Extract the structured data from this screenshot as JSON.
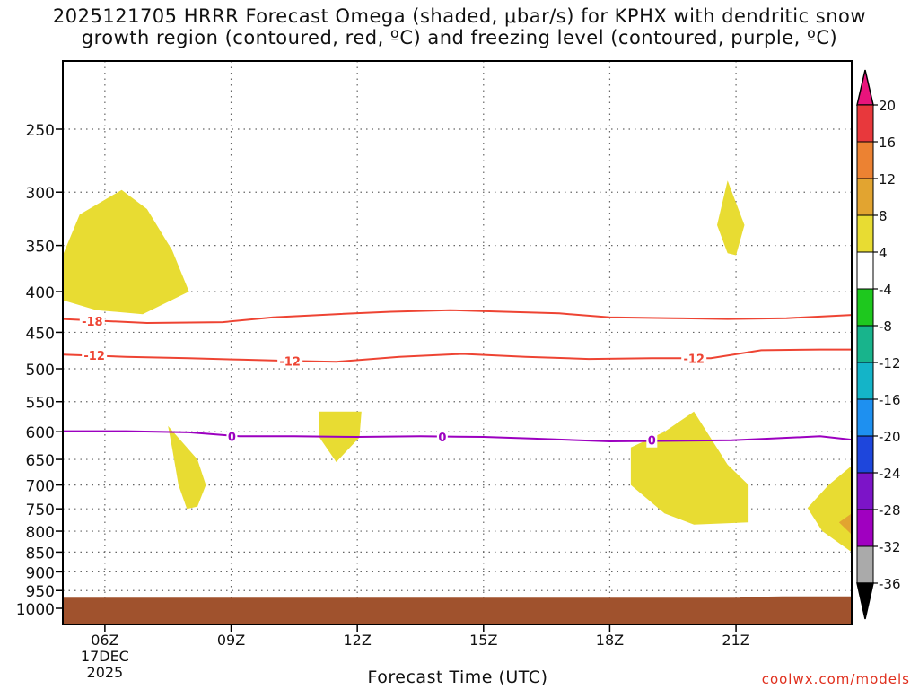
{
  "title": {
    "line1": "2025121705 HRRR Forecast Omega (shaded, μbar/s) for KPHX with dendritic snow",
    "line2": "growth region (contoured, red, ºC) and freezing level (contoured, purple, ºC)"
  },
  "xlabel": "Forecast Time (UTC)",
  "credit": "coolwx.com/models",
  "chart_data": {
    "type": "time-height",
    "xlabel": "Forecast Time (UTC)",
    "x_start_hour": 5,
    "x_end_hour": 23.75,
    "x_ticks": [
      {
        "hour": 6,
        "label": "06Z",
        "sub": [
          "17DEC",
          "2025"
        ]
      },
      {
        "hour": 9,
        "label": "09Z",
        "sub": []
      },
      {
        "hour": 12,
        "label": "12Z",
        "sub": []
      },
      {
        "hour": 15,
        "label": "15Z",
        "sub": []
      },
      {
        "hour": 18,
        "label": "18Z",
        "sub": []
      },
      {
        "hour": 21,
        "label": "21Z",
        "sub": []
      }
    ],
    "pressure_levels": [
      250,
      300,
      350,
      400,
      450,
      500,
      550,
      600,
      650,
      700,
      750,
      800,
      850,
      900,
      950,
      1000
    ],
    "p_top": 200,
    "p_bottom": 1030,
    "ground": {
      "color": "#a0522d",
      "surface": [
        [
          5,
          970
        ],
        [
          21.1,
          970
        ],
        [
          21.1,
          968
        ],
        [
          22.1,
          966
        ],
        [
          23.75,
          966
        ]
      ]
    },
    "omega_regions": [
      {
        "range": "4 to 8",
        "color": "#e8dc32",
        "points": [
          [
            5.0,
            410
          ],
          [
            5.0,
            360
          ],
          [
            5.4,
            320
          ],
          [
            6.4,
            298
          ],
          [
            7.0,
            315
          ],
          [
            7.6,
            355
          ],
          [
            8.0,
            400
          ],
          [
            6.9,
            427
          ],
          [
            5.8,
            422
          ]
        ]
      },
      {
        "range": "4 to 8",
        "color": "#e8dc32",
        "points": [
          [
            7.5,
            590
          ],
          [
            8.2,
            650
          ],
          [
            8.4,
            700
          ],
          [
            8.2,
            745
          ],
          [
            7.95,
            750
          ],
          [
            7.75,
            700
          ],
          [
            7.6,
            630
          ]
        ]
      },
      {
        "range": "4 to 8",
        "color": "#e8dc32",
        "points": [
          [
            11.1,
            566
          ],
          [
            12.1,
            566
          ],
          [
            12.05,
            610
          ],
          [
            11.5,
            655
          ],
          [
            11.1,
            610
          ]
        ]
      },
      {
        "range": "4 to 8",
        "color": "#e8dc32",
        "points": [
          [
            18.5,
            628
          ],
          [
            19.3,
            600
          ],
          [
            20.0,
            566
          ],
          [
            20.8,
            660
          ],
          [
            21.3,
            700
          ],
          [
            21.3,
            780
          ],
          [
            20.0,
            785
          ],
          [
            19.3,
            760
          ],
          [
            18.5,
            700
          ]
        ]
      },
      {
        "range": "4 to 8",
        "color": "#e8dc32",
        "points": [
          [
            20.8,
            290
          ],
          [
            21.2,
            330
          ],
          [
            21.0,
            360
          ],
          [
            20.8,
            358
          ],
          [
            20.55,
            330
          ]
        ]
      },
      {
        "range": "4 to 8",
        "color": "#e8dc32",
        "points": [
          [
            23.75,
            662
          ],
          [
            23.2,
            700
          ],
          [
            22.7,
            748
          ],
          [
            23.05,
            800
          ],
          [
            23.75,
            850
          ]
        ]
      },
      {
        "range": "8 to 12",
        "color": "#e2a430",
        "points": [
          [
            23.75,
            760
          ],
          [
            23.45,
            780
          ],
          [
            23.75,
            808
          ]
        ]
      }
    ],
    "contours": [
      {
        "value": -18,
        "label": "-18",
        "color": "#ee4433",
        "points": [
          [
            5,
            433
          ],
          [
            7,
            438
          ],
          [
            8.8,
            437
          ],
          [
            10,
            431
          ],
          [
            11.5,
            427
          ],
          [
            12.8,
            424
          ],
          [
            14.2,
            422
          ],
          [
            15.5,
            424
          ],
          [
            16.8,
            426
          ],
          [
            18,
            431
          ],
          [
            19.5,
            432
          ],
          [
            20.8,
            433
          ],
          [
            22.2,
            432
          ],
          [
            23.75,
            428
          ]
        ],
        "label_at": [
          [
            5.7,
            436
          ]
        ]
      },
      {
        "value": -12,
        "label": "-12",
        "color": "#ee4433",
        "points": [
          [
            5,
            480
          ],
          [
            6.5,
            483
          ],
          [
            8,
            485
          ],
          [
            9.3,
            487
          ],
          [
            10.5,
            489
          ],
          [
            11.5,
            490
          ],
          [
            13,
            483
          ],
          [
            14.5,
            479
          ],
          [
            16,
            483
          ],
          [
            17.5,
            486
          ],
          [
            19,
            485
          ],
          [
            20.4,
            485
          ],
          [
            21.6,
            474
          ],
          [
            23,
            473
          ],
          [
            23.75,
            473
          ]
        ],
        "label_at": [
          [
            5.75,
            481
          ],
          [
            10.4,
            489
          ],
          [
            20.0,
            485
          ]
        ]
      },
      {
        "value": 0,
        "label": "0",
        "color": "#9c00c0",
        "points": [
          [
            5,
            599
          ],
          [
            6.5,
            599
          ],
          [
            8,
            601
          ],
          [
            9.2,
            608
          ],
          [
            10.5,
            608
          ],
          [
            12,
            609
          ],
          [
            13.5,
            608
          ],
          [
            15,
            609
          ],
          [
            16.2,
            612
          ],
          [
            18,
            617
          ],
          [
            19.5,
            616
          ],
          [
            20.9,
            615
          ],
          [
            21.8,
            612
          ],
          [
            23,
            608
          ],
          [
            23.75,
            614
          ]
        ],
        "label_at": [
          [
            9.02,
            608
          ],
          [
            14.02,
            609
          ],
          [
            19.0,
            615
          ]
        ]
      }
    ],
    "colorbar": {
      "labels": [
        "20",
        "16",
        "12",
        "8",
        "4",
        "-4",
        "-8",
        "-12",
        "-16",
        "-20",
        "-24",
        "-28",
        "-32",
        "-36"
      ],
      "fills": [
        "#e8383c",
        "#ec8232",
        "#e2a430",
        "#e8dc32",
        "#ffffff",
        "#1ec81e",
        "#18b48c",
        "#14b4c8",
        "#1e90f0",
        "#1e46dc",
        "#7c14c8",
        "#a000c0",
        "#aaaaaa"
      ],
      "top_cap": "#e8147c",
      "bottom_cap": "#000000"
    }
  }
}
